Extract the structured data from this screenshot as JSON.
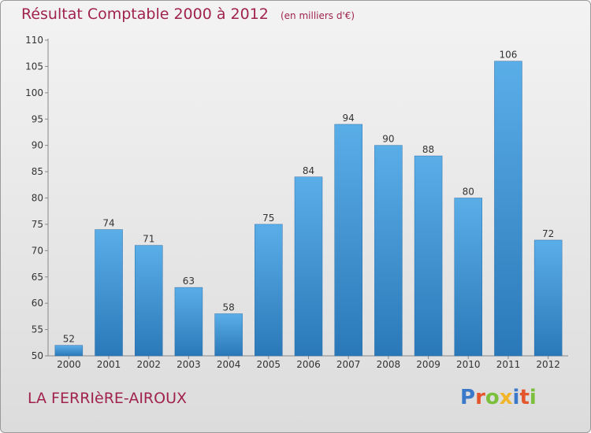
{
  "header": {
    "title": "Résultat Comptable 2000 à 2012",
    "subtitle": "(en milliers d'€)"
  },
  "footer": {
    "place": "LA FERRIèRE-AIROUX",
    "logo_text": "Proxiti",
    "logo_colors": [
      "#3a78c9",
      "#e5552b",
      "#7bbf3a",
      "#f2b52a",
      "#3a78c9",
      "#e5552b",
      "#7bbf3a"
    ]
  },
  "chart_data": {
    "type": "bar",
    "title": "Résultat Comptable 2000 à 2012",
    "subtitle": "(en milliers d'€)",
    "xlabel": "",
    "ylabel": "",
    "categories": [
      "2000",
      "2001",
      "2002",
      "2003",
      "2004",
      "2005",
      "2006",
      "2007",
      "2008",
      "2009",
      "2010",
      "2011",
      "2012"
    ],
    "values": [
      52,
      74,
      71,
      63,
      58,
      75,
      84,
      94,
      90,
      88,
      80,
      106,
      72
    ],
    "ylim": [
      50,
      110
    ],
    "yticks": [
      50,
      55,
      60,
      65,
      70,
      75,
      80,
      85,
      90,
      95,
      100,
      105,
      110
    ],
    "grid": false,
    "legend": "none",
    "bar_color": "#3f8fd4"
  }
}
